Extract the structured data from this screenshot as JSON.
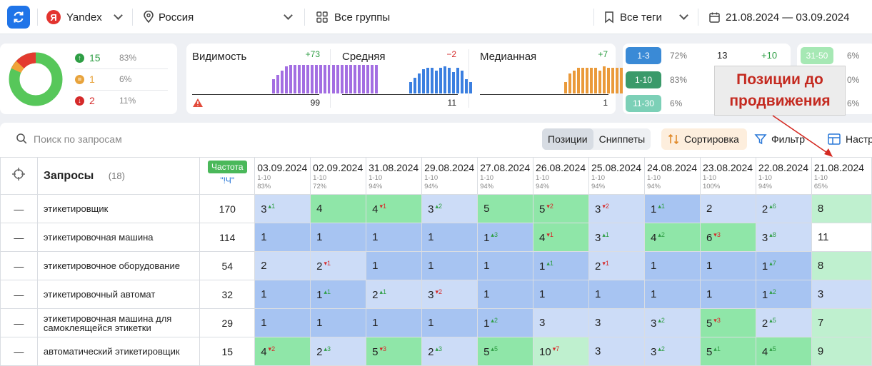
{
  "topbar": {
    "engine": "Yandex",
    "engine_icon": "Я",
    "region": "Россия",
    "groups": "Все группы",
    "tags": "Все теги",
    "date_range": "21.08.2024 — 03.09.2024"
  },
  "summary": {
    "pie": {
      "green_pct": 83,
      "orange_pct": 6,
      "red_pct": 11
    },
    "rows": [
      {
        "count": "15",
        "pct": "83%",
        "color": "#2e9e44",
        "icon": "↑"
      },
      {
        "count": "1",
        "pct": "6%",
        "color": "#e8a33b",
        "icon": "="
      },
      {
        "count": "2",
        "pct": "11%",
        "color": "#d52a2a",
        "icon": "↓"
      }
    ]
  },
  "metrics": [
    {
      "title": "Видимость",
      "delta": "+73",
      "value": "99",
      "color": "#a36ee2",
      "delta_color": "#2e9e44",
      "bars": [
        20,
        26,
        32,
        38,
        40,
        40,
        40,
        40,
        40,
        40,
        40,
        40,
        40,
        40,
        40,
        40,
        40,
        40,
        40,
        40,
        40,
        40,
        40,
        40,
        40
      ]
    },
    {
      "title": "Средняя",
      "delta": "−2",
      "value": "11",
      "color": "#3b7fe0",
      "delta_color": "#d52a2a",
      "bars": [
        16,
        22,
        28,
        34,
        36,
        36,
        32,
        36,
        38,
        36,
        30,
        36,
        32,
        20,
        16
      ]
    },
    {
      "title": "Медианная",
      "delta": "+7",
      "value": "1",
      "color": "#ea9a3a",
      "delta_color": "#2e9e44",
      "bars": [
        16,
        28,
        32,
        36,
        36,
        36,
        36,
        36,
        32,
        38,
        36,
        36,
        36,
        36,
        36,
        36,
        36,
        36,
        36,
        36,
        36
      ]
    }
  ],
  "positions": [
    {
      "range": "1-3",
      "pct": "72%",
      "count": "13",
      "delta": "+10",
      "color": "#3a8ad6"
    },
    {
      "range": "1-10",
      "pct": "83%",
      "color": "#3a9a6a"
    },
    {
      "range": "11-30",
      "pct": "6%",
      "color": "#7cd0b7"
    }
  ],
  "positions_right": [
    {
      "range": "31-50",
      "pct": "6%",
      "color": "#a6e8b4"
    },
    {
      "pct": "0%"
    },
    {
      "pct": "6%"
    }
  ],
  "annotation": "Позиции до продвижения",
  "toolbar": {
    "search_placeholder": "Поиск по запросам",
    "seg_positions": "Позиции",
    "seg_snippets": "Сниппеты",
    "sort": "Сортировка",
    "filter": "Фильтр",
    "settings": "Настр"
  },
  "table": {
    "queries_title": "Запросы",
    "queries_count": "(18)",
    "freq_badge": "Частота",
    "freq_sub": "\"!Ч\"",
    "dates": [
      {
        "date": "03.09.2024",
        "range": "1-10",
        "pct": "83%"
      },
      {
        "date": "02.09.2024",
        "range": "1-10",
        "pct": "72%"
      },
      {
        "date": "31.08.2024",
        "range": "1-10",
        "pct": "94%"
      },
      {
        "date": "29.08.2024",
        "range": "1-10",
        "pct": "94%"
      },
      {
        "date": "27.08.2024",
        "range": "1-10",
        "pct": "94%"
      },
      {
        "date": "26.08.2024",
        "range": "1-10",
        "pct": "94%"
      },
      {
        "date": "25.08.2024",
        "range": "1-10",
        "pct": "94%"
      },
      {
        "date": "24.08.2024",
        "range": "1-10",
        "pct": "94%"
      },
      {
        "date": "23.08.2024",
        "range": "1-10",
        "pct": "100%"
      },
      {
        "date": "22.08.2024",
        "range": "1-10",
        "pct": "94%"
      },
      {
        "date": "21.08.2024",
        "range": "1-10",
        "pct": "65%"
      }
    ],
    "rows": [
      {
        "query": "этикетировщик",
        "freq": "170",
        "cells": [
          {
            "v": "3",
            "d": "+1",
            "c": "c2"
          },
          {
            "v": "4",
            "d": "",
            "c": "c3"
          },
          {
            "v": "4",
            "d": "-1",
            "c": "c3"
          },
          {
            "v": "3",
            "d": "+2",
            "c": "c2"
          },
          {
            "v": "5",
            "d": "",
            "c": "c3"
          },
          {
            "v": "5",
            "d": "-2",
            "c": "c3"
          },
          {
            "v": "3",
            "d": "-2",
            "c": "c2"
          },
          {
            "v": "1",
            "d": "+1",
            "c": "c1"
          },
          {
            "v": "2",
            "d": "",
            "c": "c2"
          },
          {
            "v": "2",
            "d": "+6",
            "c": "c2"
          },
          {
            "v": "8",
            "d": "",
            "c": "c4"
          }
        ]
      },
      {
        "query": "этикетировочная машина",
        "freq": "114",
        "cells": [
          {
            "v": "1",
            "d": "",
            "c": "c1"
          },
          {
            "v": "1",
            "d": "",
            "c": "c1"
          },
          {
            "v": "1",
            "d": "",
            "c": "c1"
          },
          {
            "v": "1",
            "d": "",
            "c": "c1"
          },
          {
            "v": "1",
            "d": "+3",
            "c": "c1"
          },
          {
            "v": "4",
            "d": "-1",
            "c": "c3"
          },
          {
            "v": "3",
            "d": "+1",
            "c": "c2"
          },
          {
            "v": "4",
            "d": "+2",
            "c": "c3"
          },
          {
            "v": "6",
            "d": "-3",
            "c": "c3"
          },
          {
            "v": "3",
            "d": "+8",
            "c": "c2"
          },
          {
            "v": "11",
            "d": "",
            "c": "c5"
          }
        ]
      },
      {
        "query": "этикетировочное оборудование",
        "freq": "54",
        "cells": [
          {
            "v": "2",
            "d": "",
            "c": "c2"
          },
          {
            "v": "2",
            "d": "-1",
            "c": "c2"
          },
          {
            "v": "1",
            "d": "",
            "c": "c1"
          },
          {
            "v": "1",
            "d": "",
            "c": "c1"
          },
          {
            "v": "1",
            "d": "",
            "c": "c1"
          },
          {
            "v": "1",
            "d": "+1",
            "c": "c1"
          },
          {
            "v": "2",
            "d": "-1",
            "c": "c2"
          },
          {
            "v": "1",
            "d": "",
            "c": "c1"
          },
          {
            "v": "1",
            "d": "",
            "c": "c1"
          },
          {
            "v": "1",
            "d": "+7",
            "c": "c1"
          },
          {
            "v": "8",
            "d": "",
            "c": "c4"
          }
        ]
      },
      {
        "query": "этикетировочный автомат",
        "freq": "32",
        "cells": [
          {
            "v": "1",
            "d": "",
            "c": "c1"
          },
          {
            "v": "1",
            "d": "+1",
            "c": "c1"
          },
          {
            "v": "2",
            "d": "+1",
            "c": "c2"
          },
          {
            "v": "3",
            "d": "-2",
            "c": "c2"
          },
          {
            "v": "1",
            "d": "",
            "c": "c1"
          },
          {
            "v": "1",
            "d": "",
            "c": "c1"
          },
          {
            "v": "1",
            "d": "",
            "c": "c1"
          },
          {
            "v": "1",
            "d": "",
            "c": "c1"
          },
          {
            "v": "1",
            "d": "",
            "c": "c1"
          },
          {
            "v": "1",
            "d": "+2",
            "c": "c1"
          },
          {
            "v": "3",
            "d": "",
            "c": "c2"
          }
        ]
      },
      {
        "query": "этикетировочная машина для самоклеящейся этикетки",
        "freq": "29",
        "cells": [
          {
            "v": "1",
            "d": "",
            "c": "c1"
          },
          {
            "v": "1",
            "d": "",
            "c": "c1"
          },
          {
            "v": "1",
            "d": "",
            "c": "c1"
          },
          {
            "v": "1",
            "d": "",
            "c": "c1"
          },
          {
            "v": "1",
            "d": "+2",
            "c": "c1"
          },
          {
            "v": "3",
            "d": "",
            "c": "c2"
          },
          {
            "v": "3",
            "d": "",
            "c": "c2"
          },
          {
            "v": "3",
            "d": "+2",
            "c": "c2"
          },
          {
            "v": "5",
            "d": "-3",
            "c": "c3"
          },
          {
            "v": "2",
            "d": "+5",
            "c": "c2"
          },
          {
            "v": "7",
            "d": "",
            "c": "c4"
          }
        ]
      },
      {
        "query": "автоматический этикетировщик",
        "freq": "15",
        "cells": [
          {
            "v": "4",
            "d": "-2",
            "c": "c3"
          },
          {
            "v": "2",
            "d": "+3",
            "c": "c2"
          },
          {
            "v": "5",
            "d": "-3",
            "c": "c3"
          },
          {
            "v": "2",
            "d": "+3",
            "c": "c2"
          },
          {
            "v": "5",
            "d": "+5",
            "c": "c3"
          },
          {
            "v": "10",
            "d": "-7",
            "c": "c4"
          },
          {
            "v": "3",
            "d": "",
            "c": "c2"
          },
          {
            "v": "3",
            "d": "+2",
            "c": "c2"
          },
          {
            "v": "5",
            "d": "+1",
            "c": "c3"
          },
          {
            "v": "4",
            "d": "+5",
            "c": "c3"
          },
          {
            "v": "9",
            "d": "",
            "c": "c4"
          }
        ]
      }
    ]
  }
}
